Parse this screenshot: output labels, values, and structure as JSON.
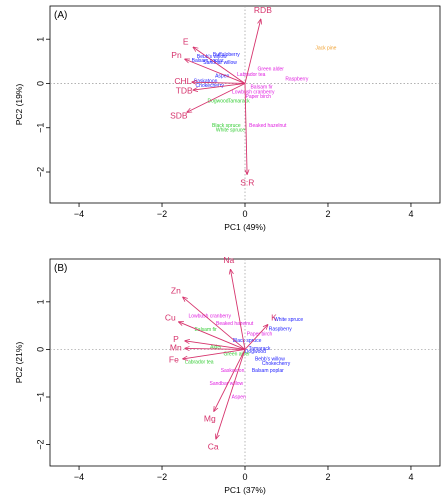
{
  "colors": {
    "vector": "#d6336c",
    "blue": "#1a1aff",
    "magenta": "#e020e0",
    "green": "#33cc33",
    "orange": "#f0a030",
    "dotted": "#999999"
  },
  "chart_data": [
    {
      "type": "scatter",
      "panel_label": "(A)",
      "xlabel": "PC1 (49%)",
      "ylabel": "PC2 (19%)",
      "xlim": [
        -4.7,
        4.7
      ],
      "ylim": [
        -2.7,
        1.75
      ],
      "xticks": [
        -4,
        -2,
        0,
        2,
        4
      ],
      "yticks": [
        -2,
        -1,
        0,
        1
      ],
      "vectors": [
        {
          "label": "RDB",
          "x": 0.38,
          "y": 1.45
        },
        {
          "label": "E",
          "x": -1.25,
          "y": 0.82
        },
        {
          "label": "Pn",
          "x": -1.45,
          "y": 0.55
        },
        {
          "label": "CHL",
          "x": -1.28,
          "y": 0.03
        },
        {
          "label": "TDB",
          "x": -1.25,
          "y": -0.15
        },
        {
          "label": "SDB",
          "x": -1.4,
          "y": -0.65
        },
        {
          "label": "S:R",
          "x": 0.05,
          "y": -2.05
        }
      ],
      "points": [
        {
          "label": "Jack pine",
          "x": 1.95,
          "y": 0.8,
          "group": "orange"
        },
        {
          "label": "Buffaloberry",
          "x": -0.45,
          "y": 0.65,
          "group": "blue"
        },
        {
          "label": "Bebb's willow",
          "x": -0.8,
          "y": 0.6,
          "group": "blue"
        },
        {
          "label": "Balsam poplar",
          "x": -0.9,
          "y": 0.52,
          "group": "blue"
        },
        {
          "label": "Sandbar willow",
          "x": -0.6,
          "y": 0.47,
          "group": "blue"
        },
        {
          "label": "Green alder",
          "x": 0.62,
          "y": 0.32,
          "group": "magenta"
        },
        {
          "label": "Labrador tea",
          "x": 0.15,
          "y": 0.2,
          "group": "magenta"
        },
        {
          "label": "Raspberry",
          "x": 1.25,
          "y": 0.1,
          "group": "magenta"
        },
        {
          "label": "Aspen",
          "x": -0.55,
          "y": 0.17,
          "group": "blue"
        },
        {
          "label": "Saskatoon",
          "x": -0.95,
          "y": 0.05,
          "group": "blue"
        },
        {
          "label": "Chokecherry",
          "x": -0.85,
          "y": -0.05,
          "group": "blue"
        },
        {
          "label": "Balsam fir",
          "x": 0.4,
          "y": -0.08,
          "group": "magenta"
        },
        {
          "label": "Lowbush cranberry",
          "x": 0.2,
          "y": -0.2,
          "group": "magenta"
        },
        {
          "label": "Paper birch",
          "x": 0.32,
          "y": -0.3,
          "group": "magenta"
        },
        {
          "label": "Dogwood",
          "x": -0.65,
          "y": -0.4,
          "group": "green"
        },
        {
          "label": "Tamarack",
          "x": -0.15,
          "y": -0.4,
          "group": "green"
        },
        {
          "label": "Black spruce",
          "x": -0.45,
          "y": -0.95,
          "group": "green"
        },
        {
          "label": "White spruce",
          "x": -0.35,
          "y": -1.05,
          "group": "green"
        },
        {
          "label": "Beaked hazelnut",
          "x": 0.55,
          "y": -0.95,
          "group": "magenta"
        }
      ]
    },
    {
      "type": "scatter",
      "panel_label": "(B)",
      "xlabel": "PC1 (37%)",
      "ylabel": "PC2 (21%)",
      "xlim": [
        -4.7,
        4.7
      ],
      "ylim": [
        -2.45,
        1.9
      ],
      "xticks": [
        -4,
        -2,
        0,
        2,
        4
      ],
      "yticks": [
        -2,
        -1,
        0,
        1
      ],
      "vectors": [
        {
          "label": "Na",
          "x": -0.35,
          "y": 1.68
        },
        {
          "label": "Zn",
          "x": -1.5,
          "y": 1.1
        },
        {
          "label": "Cu",
          "x": -1.6,
          "y": 0.58
        },
        {
          "label": "K",
          "x": 0.55,
          "y": 0.52
        },
        {
          "label": "P",
          "x": -1.45,
          "y": 0.18
        },
        {
          "label": "Mn",
          "x": -1.45,
          "y": 0.02
        },
        {
          "label": "Fe",
          "x": -1.5,
          "y": -0.2
        },
        {
          "label": "Mg",
          "x": -0.75,
          "y": -1.3
        },
        {
          "label": "Ca",
          "x": -0.7,
          "y": -1.88
        }
      ],
      "points": [
        {
          "label": "Lowbush cranberry",
          "x": -0.85,
          "y": 0.7,
          "group": "magenta"
        },
        {
          "label": "Beaked hazelnut",
          "x": -0.25,
          "y": 0.54,
          "group": "magenta"
        },
        {
          "label": "White spruce",
          "x": 1.05,
          "y": 0.62,
          "group": "blue"
        },
        {
          "label": "Raspberry",
          "x": 0.85,
          "y": 0.43,
          "group": "blue"
        },
        {
          "label": "Balsam fir",
          "x": -0.95,
          "y": 0.42,
          "group": "green"
        },
        {
          "label": "Paper birch",
          "x": 0.35,
          "y": 0.32,
          "group": "magenta"
        },
        {
          "label": "Black spruce",
          "x": 0.05,
          "y": 0.18,
          "group": "blue"
        },
        {
          "label": "Tamarack",
          "x": 0.35,
          "y": 0.02,
          "group": "blue"
        },
        {
          "label": "Alder",
          "x": -0.7,
          "y": 0.05,
          "group": "green"
        },
        {
          "label": "Dogwood",
          "x": 0.25,
          "y": -0.05,
          "group": "blue"
        },
        {
          "label": "Green alder",
          "x": -0.2,
          "y": -0.1,
          "group": "green"
        },
        {
          "label": "Labrador tea",
          "x": -1.1,
          "y": -0.27,
          "group": "green"
        },
        {
          "label": "Bebb's willow",
          "x": 0.6,
          "y": -0.2,
          "group": "blue"
        },
        {
          "label": "Saskatoon",
          "x": -0.3,
          "y": -0.45,
          "group": "magenta"
        },
        {
          "label": "Chokecherry",
          "x": 0.75,
          "y": -0.3,
          "group": "blue"
        },
        {
          "label": "Balsam poplar",
          "x": 0.55,
          "y": -0.45,
          "group": "blue"
        },
        {
          "label": "Sandbar willow",
          "x": -0.45,
          "y": -0.72,
          "group": "magenta"
        },
        {
          "label": "Aspen",
          "x": -0.15,
          "y": -1.0,
          "group": "magenta"
        }
      ]
    }
  ]
}
